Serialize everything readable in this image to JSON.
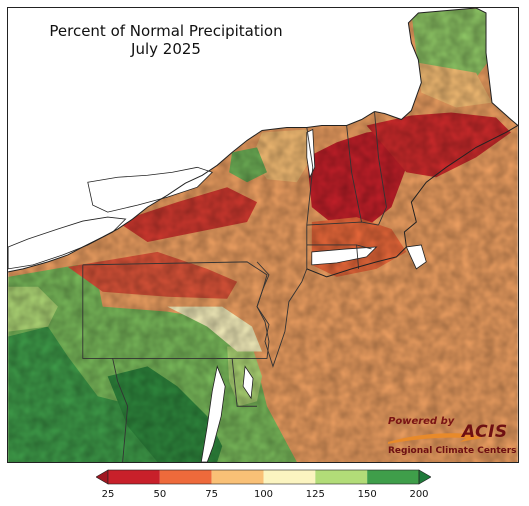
{
  "title": {
    "line1": "Percent of Normal Precipitation",
    "line2": "July 2025"
  },
  "credit": {
    "powered_by": "Powered by",
    "brand": "ACIS",
    "org": "Regional Climate Centers"
  },
  "legend": {
    "ticks": [
      "25",
      "50",
      "75",
      "100",
      "125",
      "150",
      "200"
    ],
    "bins": [
      {
        "range": "25-50",
        "color": "#c8202a"
      },
      {
        "range": "50-75",
        "color": "#ee6a3b"
      },
      {
        "range": "75-100",
        "color": "#f9c076"
      },
      {
        "range": "100-125",
        "color": "#fbf4c0"
      },
      {
        "range": "125-150",
        "color": "#b2dc78"
      },
      {
        "range": "150-200",
        "color": "#3f9e4a"
      }
    ],
    "under_color": "#a01822",
    "over_color": "#1f7a3a"
  },
  "colors": {
    "land_background": "#f2a263",
    "water": "#ffffff",
    "boundary": "#333333"
  }
}
